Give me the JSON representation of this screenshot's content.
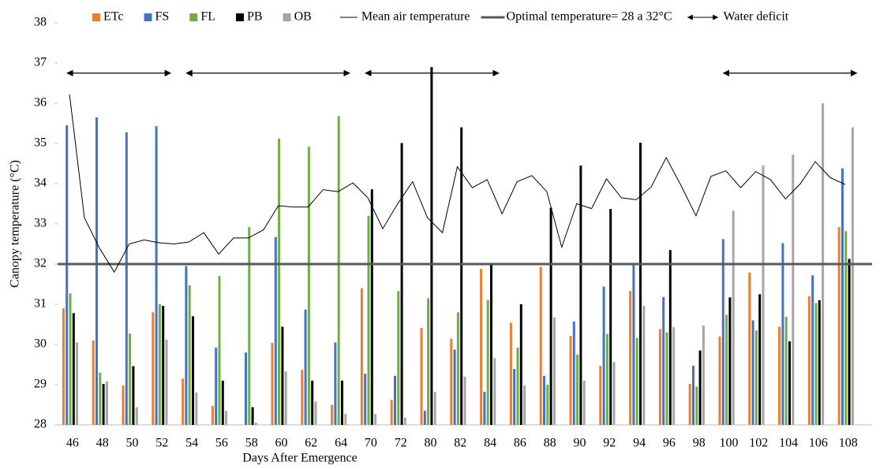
{
  "chart_data": {
    "type": "bar",
    "y_label": "Canopy temperature (°C)",
    "x_label": "Days After Emergence",
    "categories": [
      "46",
      "48",
      "50",
      "52",
      "54",
      "56",
      "58",
      "60",
      "62",
      "64",
      "70",
      "72",
      "80",
      "82",
      "84",
      "86",
      "88",
      "90",
      "92",
      "94",
      "96",
      "98",
      "100",
      "102",
      "104",
      "106",
      "108"
    ],
    "series": [
      {
        "name": "ETc",
        "color": "#ED7D31",
        "values": [
          30.9,
          30.1,
          28.98,
          30.8,
          29.15,
          28.47,
          28.0,
          30.04,
          29.37,
          28.5,
          31.4,
          28.62,
          30.41,
          30.14,
          31.88,
          30.54,
          31.93,
          30.21,
          29.47,
          31.33,
          30.38,
          29.02,
          30.2,
          31.79,
          30.44,
          31.2,
          32.92
        ]
      },
      {
        "name": "FS",
        "color": "#4472C4",
        "values": [
          35.45,
          35.65,
          35.28,
          35.43,
          31.95,
          29.92,
          29.8,
          32.67,
          30.87,
          30.05,
          29.27,
          29.22,
          28.35,
          29.87,
          28.82,
          29.39,
          29.22,
          30.57,
          31.44,
          31.97,
          31.18,
          29.47,
          32.62,
          30.6,
          32.52,
          31.72,
          34.38
        ]
      },
      {
        "name": "FL",
        "color": "#70AD47",
        "values": [
          31.27,
          29.3,
          30.27,
          31.0,
          31.47,
          31.7,
          32.92,
          35.12,
          34.92,
          35.68,
          33.2,
          31.33,
          31.15,
          30.8,
          31.1,
          29.92,
          29.0,
          29.75,
          30.26,
          30.16,
          30.3,
          28.95,
          30.74,
          30.35,
          30.69,
          31.03,
          32.82
        ]
      },
      {
        "name": "PB",
        "color": "#000000",
        "values": [
          30.78,
          29.02,
          29.46,
          30.96,
          30.7,
          29.1,
          28.44,
          30.44,
          29.1,
          29.1,
          33.86,
          35.01,
          36.9,
          35.4,
          32.0,
          31.0,
          33.4,
          34.45,
          33.37,
          35.02,
          32.35,
          29.85,
          31.17,
          31.25,
          30.08,
          31.1,
          32.13
        ]
      },
      {
        "name": "OB",
        "color": "#A5A5A5",
        "values": [
          30.05,
          29.08,
          28.44,
          30.12,
          28.8,
          28.35,
          28.05,
          29.33,
          28.58,
          28.27,
          28.27,
          28.18,
          28.82,
          29.2,
          29.66,
          28.98,
          30.67,
          29.1,
          29.56,
          30.96,
          30.43,
          30.47,
          33.33,
          34.45,
          34.72,
          36.0,
          35.4
        ]
      }
    ],
    "mean_line": {
      "name": "Mean air temperature",
      "color": "#000000",
      "values": [
        36.22,
        33.15,
        32.4,
        31.8,
        32.5,
        32.6,
        32.53,
        32.5,
        32.55,
        32.78,
        32.25,
        32.65,
        32.65,
        32.85,
        33.45,
        33.42,
        33.42,
        33.85,
        33.8,
        34.02,
        33.65,
        32.88,
        33.5,
        34.05,
        33.15,
        32.78,
        34.42,
        33.9,
        34.1,
        33.25,
        34.05,
        34.2,
        33.8,
        32.42,
        33.5,
        33.38,
        34.12,
        33.65,
        33.6,
        33.92,
        34.65,
        33.95,
        33.2,
        34.18,
        34.32,
        33.9,
        34.3,
        34.1,
        33.62,
        34.0,
        34.55,
        34.15,
        33.98
      ]
    },
    "optimal_line": {
      "name": "Optimal temperature= 28 a 32°C",
      "color": "#595959",
      "value": 32
    },
    "water_deficit": {
      "name": "Water deficit",
      "level": 36.75,
      "ranges": [
        [
          46,
          52
        ],
        [
          54,
          64
        ],
        [
          70,
          84
        ],
        [
          100,
          108
        ]
      ]
    },
    "ylim": [
      28,
      38
    ],
    "yticks": [
      28,
      29,
      30,
      31,
      32,
      33,
      34,
      35,
      36,
      37,
      38
    ],
    "grid": false
  }
}
